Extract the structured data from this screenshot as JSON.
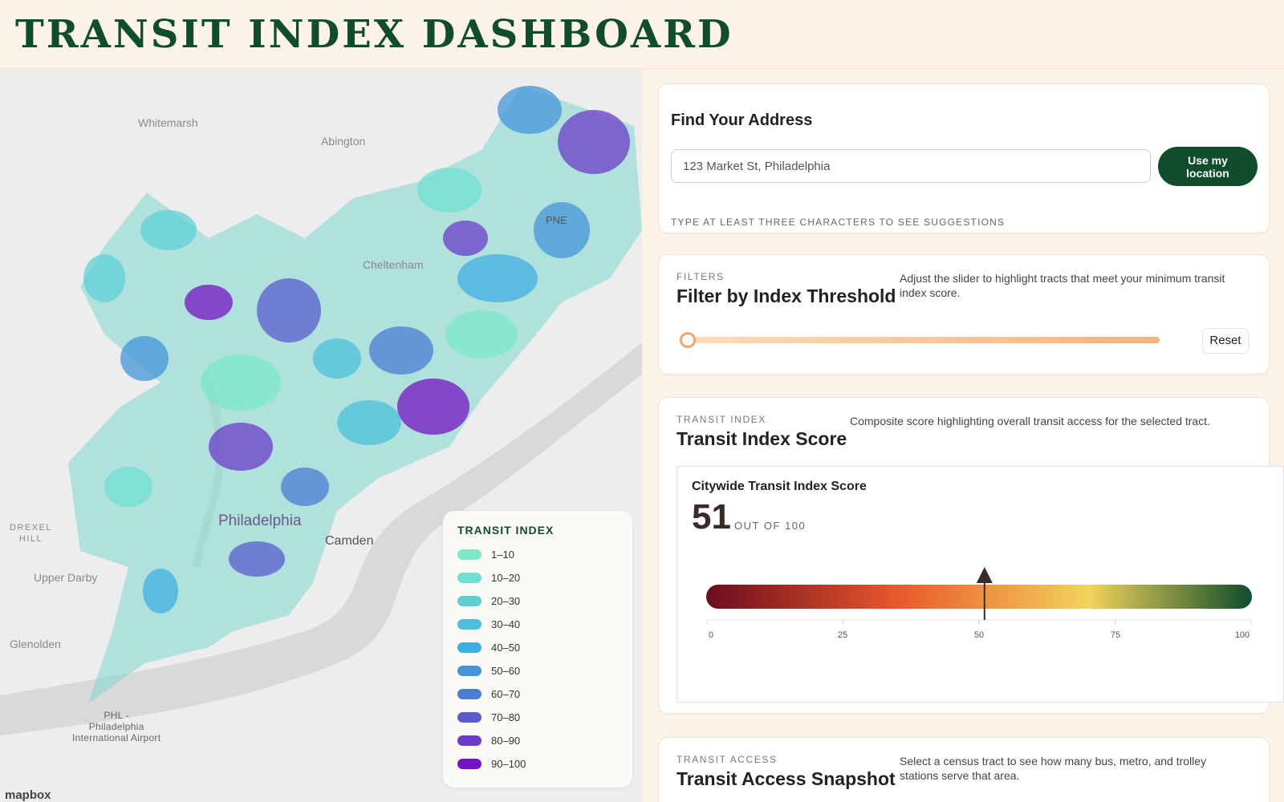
{
  "header": {
    "title": "TRANSIT INDEX DASHBOARD"
  },
  "map": {
    "places": {
      "whitemarsh": "Whitemarsh",
      "abington": "Abington",
      "cheltenham": "Cheltenham",
      "pne": "PNE",
      "drexel_hill": "DREXEL\nHILL",
      "upper_darby": "Upper Darby",
      "glenolden": "Glenolden",
      "philadelphia": "Philadelphia",
      "camden": "Camden",
      "airport": "PHL -\nPhiladelphia\nInternational Airport"
    },
    "logo": "mapbox"
  },
  "legend": {
    "title": "TRANSIT INDEX",
    "items": [
      {
        "label": "1–10",
        "color": "#7ce8c8"
      },
      {
        "label": "10–20",
        "color": "#6fdfd0"
      },
      {
        "label": "20–30",
        "color": "#5dd0d4"
      },
      {
        "label": "30–40",
        "color": "#4cc0db"
      },
      {
        "label": "40–50",
        "color": "#40ade0"
      },
      {
        "label": "50–60",
        "color": "#4395d8"
      },
      {
        "label": "60–70",
        "color": "#4a7ed2"
      },
      {
        "label": "70–80",
        "color": "#5a5ccc"
      },
      {
        "label": "80–90",
        "color": "#6b3cc8"
      },
      {
        "label": "90–100",
        "color": "#7414c0"
      }
    ]
  },
  "address": {
    "title": "Find Your Address",
    "input_value": "123 Market St, Philadelphia",
    "button_label": "Use my location",
    "hint": "TYPE AT LEAST THREE CHARACTERS TO SEE SUGGESTIONS"
  },
  "filters": {
    "eyebrow": "FILTERS",
    "title": "Filter by Index Threshold",
    "description": "Adjust the slider to highlight tracts that meet your minimum transit index score.",
    "slider_value": 0,
    "reset_label": "Reset"
  },
  "score": {
    "eyebrow": "TRANSIT INDEX",
    "title": "Transit Index Score",
    "description": "Composite score highlighting overall transit access for the selected tract.",
    "panel_title": "Citywide Transit Index Score",
    "value": "51",
    "out_of": "OUT OF 100",
    "ticks": [
      "0",
      "25",
      "50",
      "75",
      "100"
    ]
  },
  "chart_data": {
    "type": "gauge",
    "value": 51,
    "range": [
      0,
      100
    ],
    "ticks": [
      0,
      25,
      50,
      75,
      100
    ],
    "gradient_colors": [
      "#6b0c1f",
      "#e8582a",
      "#f2d45c",
      "#0f4d2b"
    ]
  },
  "access": {
    "eyebrow": "TRANSIT ACCESS",
    "title": "Transit Access Snapshot",
    "description": "Select a census tract to see how many bus, metro, and trolley stations serve that area."
  }
}
